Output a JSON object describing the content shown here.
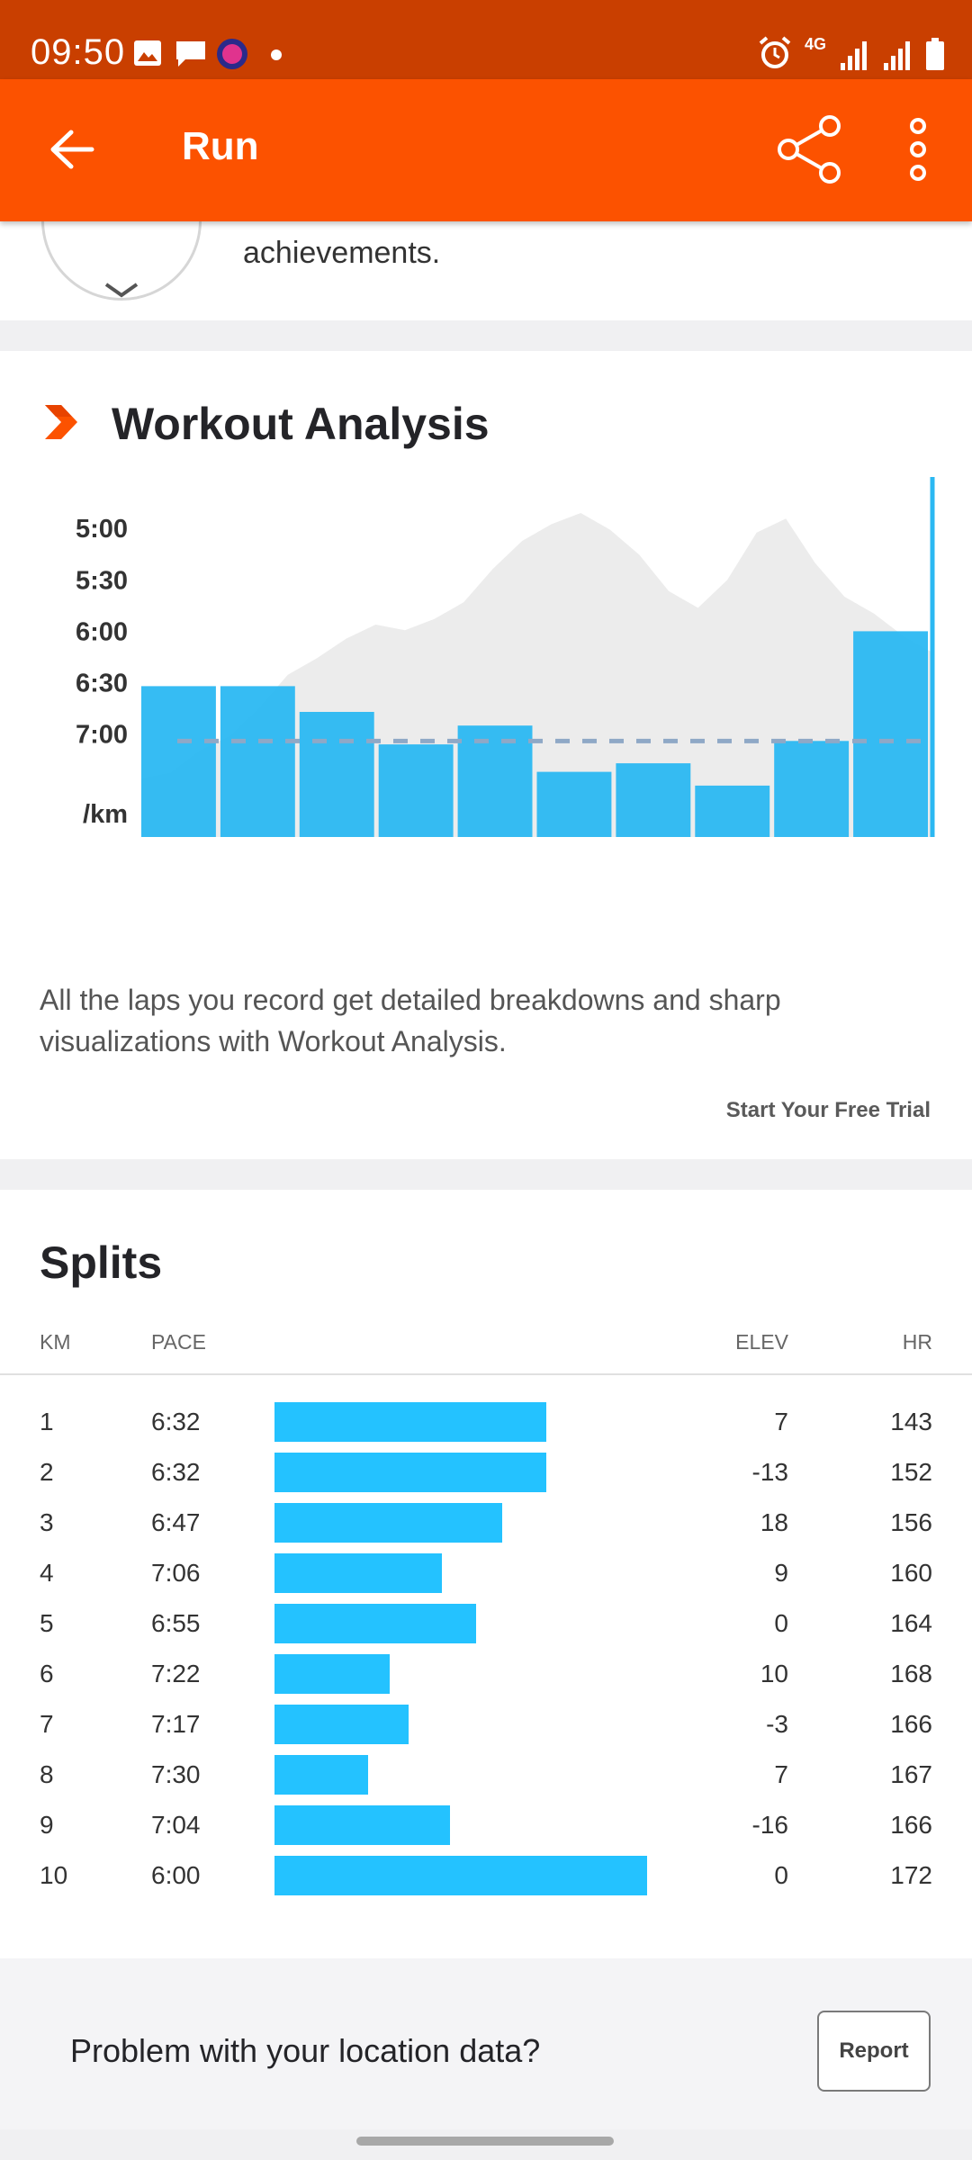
{
  "status_bar": {
    "time": "09:50",
    "network": "4G"
  },
  "app_bar": {
    "title": "Run"
  },
  "achievement_card": {
    "text": "achievements."
  },
  "workout_analysis": {
    "title": "Workout Analysis",
    "description": "All the laps you record get detailed breakdowns and sharp visualizations with Workout Analysis.",
    "cta": "Start Your Free Trial"
  },
  "chart_data": {
    "type": "bar",
    "title": "",
    "y_ticks": [
      "5:00",
      "5:30",
      "6:00",
      "6:30",
      "7:00"
    ],
    "y_unit": "/km",
    "ylim_seconds_per_km": [
      270,
      480
    ],
    "average_pace_seconds": 424,
    "categories": [
      "1",
      "2",
      "3",
      "4",
      "5",
      "6",
      "7",
      "8",
      "9",
      "10"
    ],
    "values_seconds_per_km": [
      392,
      392,
      407,
      426,
      415,
      442,
      437,
      450,
      424,
      360
    ],
    "elevation_profile_relative": [
      0.05,
      0.07,
      0.15,
      0.2,
      0.3,
      0.42,
      0.48,
      0.55,
      0.6,
      0.58,
      0.62,
      0.68,
      0.8,
      0.9,
      0.96,
      1.0,
      0.94,
      0.85,
      0.72,
      0.66,
      0.76,
      0.93,
      0.98,
      0.82,
      0.7,
      0.64,
      0.56,
      0.5
    ]
  },
  "splits": {
    "title": "Splits",
    "headers": {
      "km": "KM",
      "pace": "PACE",
      "elev": "ELEV",
      "hr": "HR"
    },
    "rows": [
      {
        "km": "1",
        "pace": "6:32",
        "elev": "7",
        "hr": "143",
        "bar_fraction": 0.73
      },
      {
        "km": "2",
        "pace": "6:32",
        "elev": "-13",
        "hr": "152",
        "bar_fraction": 0.73
      },
      {
        "km": "3",
        "pace": "6:47",
        "elev": "18",
        "hr": "156",
        "bar_fraction": 0.61
      },
      {
        "km": "4",
        "pace": "7:06",
        "elev": "9",
        "hr": "160",
        "bar_fraction": 0.45
      },
      {
        "km": "5",
        "pace": "6:55",
        "elev": "0",
        "hr": "164",
        "bar_fraction": 0.54
      },
      {
        "km": "6",
        "pace": "7:22",
        "elev": "10",
        "hr": "168",
        "bar_fraction": 0.31
      },
      {
        "km": "7",
        "pace": "7:17",
        "elev": "-3",
        "hr": "166",
        "bar_fraction": 0.36
      },
      {
        "km": "8",
        "pace": "7:30",
        "elev": "7",
        "hr": "167",
        "bar_fraction": 0.25
      },
      {
        "km": "9",
        "pace": "7:04",
        "elev": "-16",
        "hr": "166",
        "bar_fraction": 0.47
      },
      {
        "km": "10",
        "pace": "6:00",
        "elev": "0",
        "hr": "172",
        "bar_fraction": 1.0
      }
    ]
  },
  "location": {
    "question": "Problem with your location data?",
    "report_label": "Report"
  },
  "colors": {
    "brand": "#fc5200",
    "status_bar": "#c93f00",
    "bar": "#24c2ff",
    "chart_bar": "#2bb8f2",
    "elevation": "#ececec"
  }
}
